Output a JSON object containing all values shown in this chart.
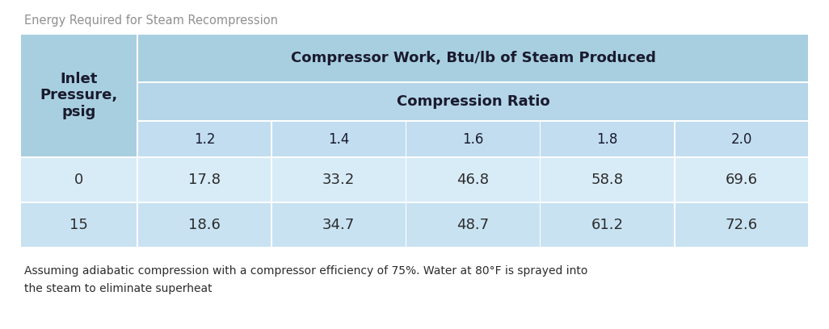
{
  "title": "Energy Required for Steam Recompression",
  "title_color": "#909090",
  "title_fontsize": 10.5,
  "header1": "Compressor Work, Btu/lb of Steam Produced",
  "header2": "Compression Ratio",
  "col_header": "Inlet\nPressure,\npsig",
  "compression_ratios": [
    "1.2",
    "1.4",
    "1.6",
    "1.8",
    "2.0"
  ],
  "inlet_pressures": [
    "0",
    "15"
  ],
  "data": [
    [
      "17.8",
      "33.2",
      "46.8",
      "58.8",
      "69.6"
    ],
    [
      "18.6",
      "34.7",
      "48.7",
      "61.2",
      "72.6"
    ]
  ],
  "footnote": "Assuming adiabatic compression with a compressor efficiency of 75%. Water at 80°F is sprayed into\nthe steam to eliminate superheat",
  "footnote_fontsize": 10,
  "color_header": "#a8cfe0",
  "color_subheader": "#b5d5e8",
  "color_ratio_row": "#c2ddf0",
  "color_data_row0": "#d8ecf8",
  "color_data_row1": "#c8e2f2",
  "border_color": "#ffffff",
  "text_dark": "#1a1a2e",
  "text_body": "#2c2c2c",
  "fig_bg": "#ffffff"
}
